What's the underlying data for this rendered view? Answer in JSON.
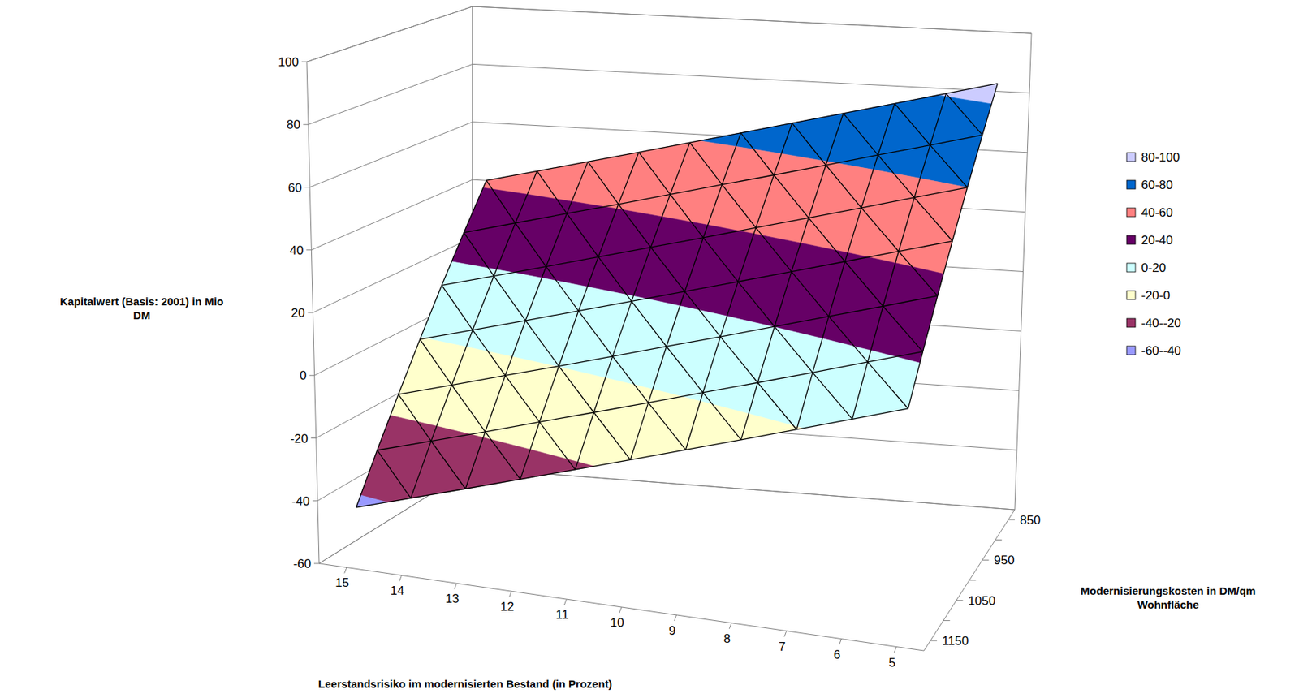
{
  "chart_data": {
    "type": "surface",
    "z_title": "Kapitalwert (Basis: 2001) in Mio DM",
    "x_title": "Leerstandsrisiko im modernisierten Bestand (in Prozent)",
    "depth_title": "Modernisierungskosten in DM/qm Wohnfläche",
    "categories": [
      15,
      14,
      13,
      12,
      11,
      10,
      9,
      8,
      7,
      6,
      5
    ],
    "depth_categories": [
      850,
      null,
      950,
      null,
      1050,
      null,
      1150
    ],
    "values": [
      [
        42,
        46.3,
        50.6,
        54.9,
        59.2,
        63.5,
        67.8,
        72.1,
        76.4,
        80.7,
        85
      ],
      [
        27.8,
        32.3,
        36.8,
        41.2,
        45.7,
        50.2,
        54.6,
        59.1,
        63.6,
        68.0,
        72.5
      ],
      [
        13.7,
        18.3,
        22.9,
        27.6,
        32.2,
        36.8,
        41.5,
        46.1,
        50.7,
        55.4,
        60.0
      ],
      [
        -0.5,
        4.3,
        9.1,
        13.9,
        18.7,
        23.5,
        28.3,
        33.1,
        37.9,
        42.7,
        47.5
      ],
      [
        -14.7,
        -9.7,
        -4.7,
        0.2,
        5.2,
        10.2,
        15.1,
        20.1,
        25.1,
        30.0,
        35.0
      ],
      [
        -28.8,
        -23.7,
        -18.6,
        -13.4,
        -8.3,
        -3.2,
        2.0,
        7.1,
        12.2,
        17.4,
        22.5
      ],
      [
        -43,
        -37.7,
        -32.4,
        -27.1,
        -21.8,
        -16.5,
        -11.2,
        -5.9,
        -0.6,
        4.7,
        10.0
      ]
    ],
    "zlim": [
      -60,
      100
    ],
    "zticks": [
      -60,
      -40,
      -20,
      0,
      20,
      40,
      60,
      80,
      100
    ],
    "bands": [
      {
        "label": "80-100",
        "range": [
          80,
          100
        ],
        "color": "#ccccff"
      },
      {
        "label": "60-80",
        "range": [
          60,
          80
        ],
        "color": "#0066cc"
      },
      {
        "label": "40-60",
        "range": [
          40,
          60
        ],
        "color": "#ff8080"
      },
      {
        "label": "20-40",
        "range": [
          20,
          40
        ],
        "color": "#660066"
      },
      {
        "label": "0-20",
        "range": [
          0,
          20
        ],
        "color": "#ccffff"
      },
      {
        "label": "-20-0",
        "range": [
          -20,
          0
        ],
        "color": "#ffffcc"
      },
      {
        "label": "-40--20",
        "range": [
          -40,
          -20
        ],
        "color": "#993366"
      },
      {
        "label": "-60--40",
        "range": [
          -60,
          -40
        ],
        "color": "#9999ff"
      }
    ],
    "legend": "right",
    "grid": true
  }
}
